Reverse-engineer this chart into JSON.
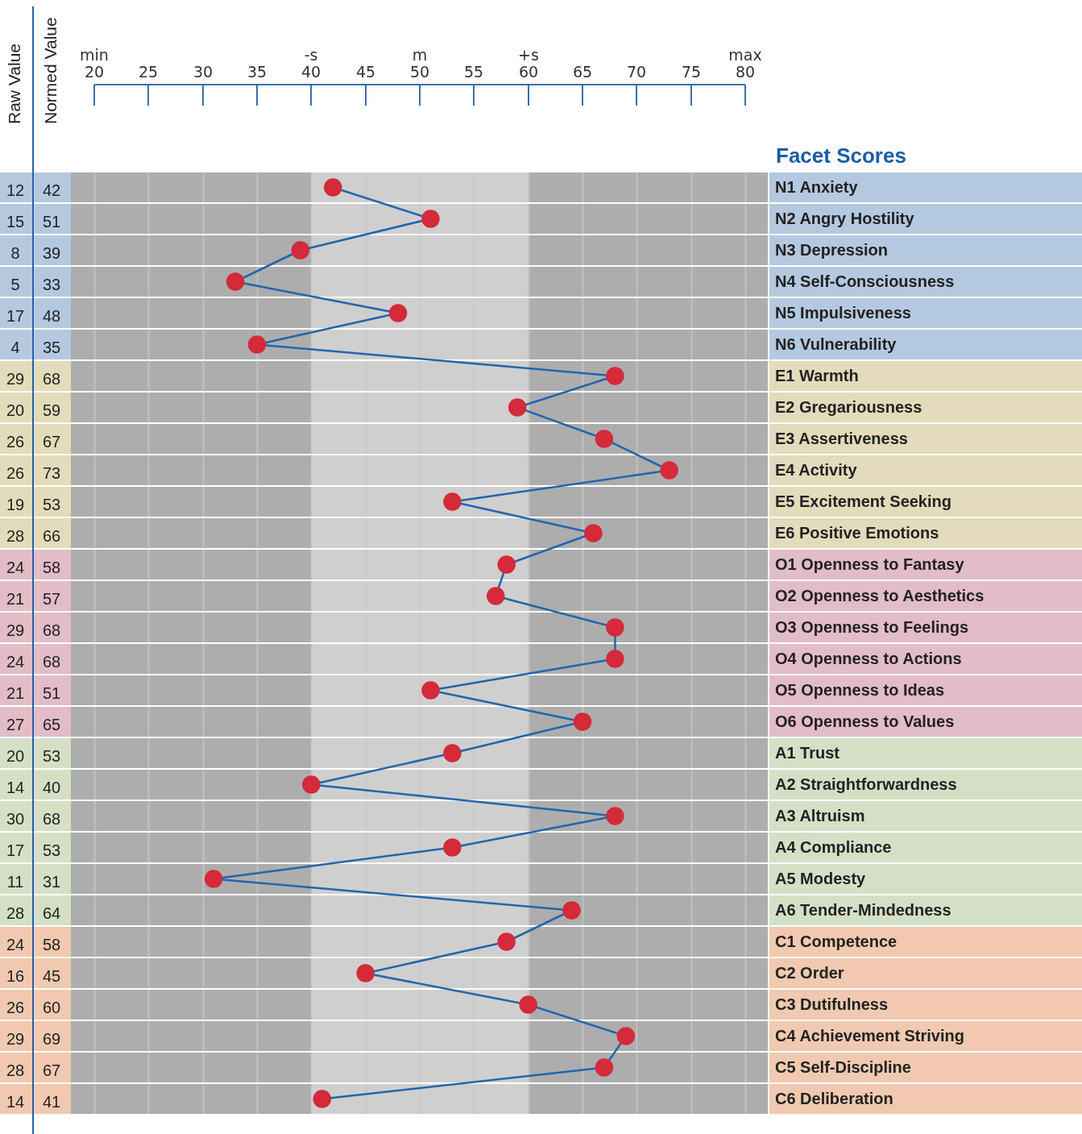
{
  "chart_data": {
    "type": "line",
    "orientation": "horizontal",
    "title": "Facet Scores",
    "categories": [
      "N1 Anxiety",
      "N2 Angry Hostility",
      "N3 Depression",
      "N4 Self-Consciousness",
      "N5 Impulsiveness",
      "N6 Vulnerability",
      "E1 Warmth",
      "E2 Gregariousness",
      "E3 Assertiveness",
      "E4 Activity",
      "E5 Excitement Seeking",
      "E6 Positive Emotions",
      "O1 Openness to Fantasy",
      "O2 Openness to Aesthetics",
      "O3 Openness to Feelings",
      "O4 Openness to Actions",
      "O5 Openness to Ideas",
      "O6 Openness to Values",
      "A1 Trust",
      "A2 Straightforwardness",
      "A3 Altruism",
      "A4 Compliance",
      "A5 Modesty",
      "A6 Tender-Mindedness",
      "C1 Competence",
      "C2 Order",
      "C3 Dutifulness",
      "C4 Achievement Striving",
      "C5 Self-Discipline",
      "C6 Deliberation"
    ],
    "series": [
      {
        "name": "Normed Value",
        "color": "#2166ac",
        "colors": [
          "#d42a3a",
          "#d42a3a",
          "#d42a3a",
          "#d42a3a",
          "#d42a3a",
          "#d42a3a",
          "#d42a3a",
          "#d42a3a",
          "#d42a3a",
          "#d42a3a",
          "#d42a3a",
          "#d42a3a",
          "#d42a3a",
          "#d42a3a",
          "#d42a3a",
          "#d42a3a",
          "#d42a3a",
          "#d42a3a",
          "#d42a3a",
          "#d42a3a",
          "#d42a3a",
          "#d42a3a",
          "#d42a3a",
          "#d42a3a",
          "#d42a3a",
          "#d42a3a",
          "#d42a3a",
          "#d42a3a",
          "#d42a3a",
          "#d42a3a"
        ],
        "values": [
          42,
          51,
          39,
          33,
          48,
          35,
          68,
          59,
          67,
          73,
          53,
          66,
          58,
          57,
          68,
          68,
          51,
          65,
          53,
          40,
          68,
          53,
          31,
          64,
          58,
          45,
          60,
          69,
          67,
          41
        ]
      }
    ],
    "xlim": [
      20,
      80
    ],
    "xticks": [
      {
        "value": 20,
        "label": "min\n20"
      },
      25,
      30,
      35,
      {
        "value": 40,
        "label": "-s\n40"
      },
      45,
      {
        "value": 50,
        "label": "m\n50"
      },
      55,
      {
        "value": 60,
        "label": "+s\n60"
      },
      65,
      70,
      75,
      {
        "value": 80,
        "label": "max\n80"
      }
    ],
    "bands": [
      {
        "axis": "x",
        "from": 40,
        "to": 60,
        "color": "#cfcfcf"
      }
    ],
    "annotations": [
      "Raw Value",
      "12",
      "15",
      "8",
      "5",
      "17",
      "4",
      "29",
      "20",
      "26",
      "26",
      "19",
      "28",
      "24",
      "21",
      "29",
      "24",
      "21",
      "27",
      "20",
      "14",
      "30",
      "17",
      "11",
      "28",
      "24",
      "16",
      "26",
      "29",
      "28",
      "14"
    ],
    "data_labels": true,
    "grid": true,
    "marker": "circle",
    "line_style": "solid"
  }
}
